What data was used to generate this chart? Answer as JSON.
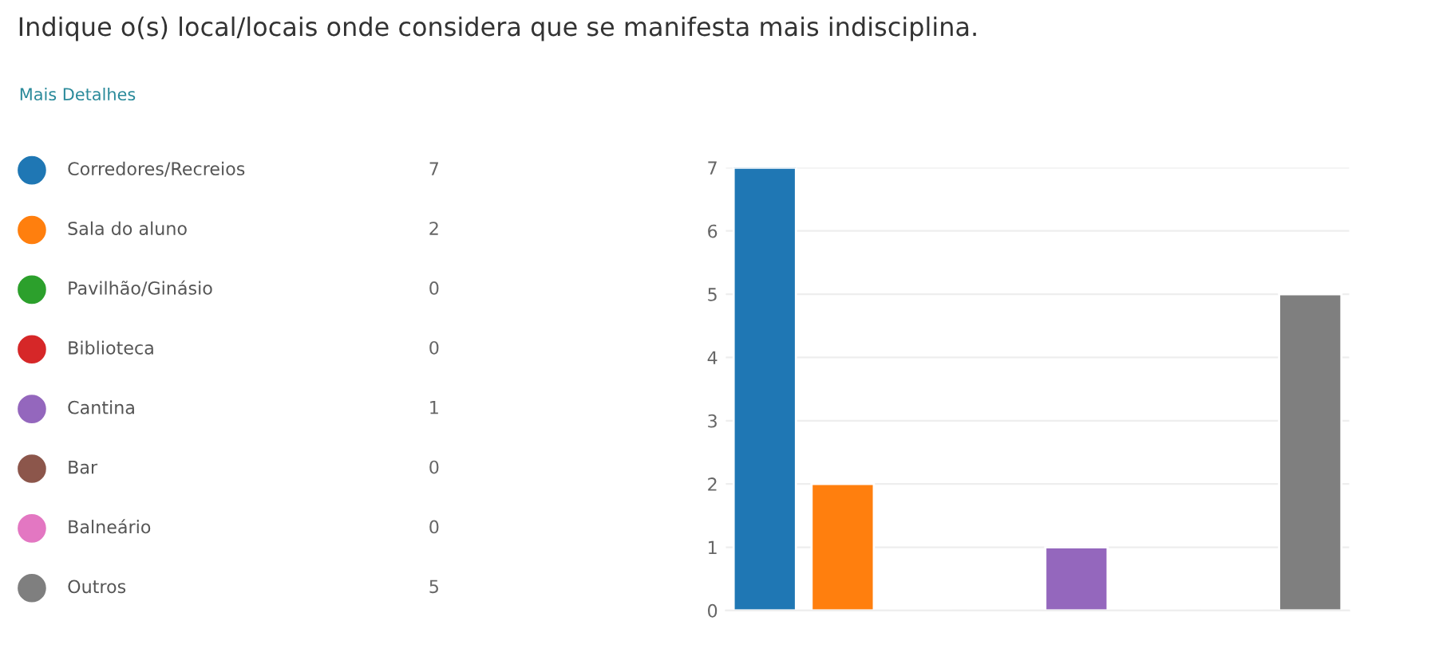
{
  "chart_data": [
    {
      "type": "other",
      "title": "Indique o(s) local/locais onde considera que se manifesta mais indisciplina.",
      "annotations": [
        "Mais Detalhes"
      ],
      "categories": [
        "Corredores/Recreios",
        "Sala do aluno",
        "Pavilhão/Ginásio",
        "Biblioteca",
        "Cantina",
        "Bar",
        "Balneário",
        "Outros"
      ],
      "values": [
        7,
        2,
        0,
        0,
        1,
        0,
        0,
        5
      ],
      "value_labels": [
        "7",
        "2",
        "0",
        "0",
        "1",
        "0",
        "0",
        "5"
      ],
      "colors": [
        "#1f77b4",
        "#ff7f0e",
        "#2ca02c",
        "#d62728",
        "#9467bd",
        "#8c564b",
        "#e377c2",
        "#7f7f7f"
      ]
    },
    {
      "type": "bar",
      "categories": [
        null,
        null,
        null,
        null,
        null,
        null,
        null,
        null
      ],
      "values": [
        7,
        2,
        0,
        0,
        1,
        0,
        0,
        5
      ],
      "colors": [
        "#1f77b4",
        "#ff7f0e",
        null,
        null,
        "#9467bd",
        null,
        null,
        "#7f7f7f"
      ],
      "ylim": [
        0,
        7
      ],
      "yticks": [
        0,
        1,
        2,
        3,
        4,
        5,
        6,
        7
      ],
      "grid": "y",
      "tick_labels": "y"
    }
  ]
}
